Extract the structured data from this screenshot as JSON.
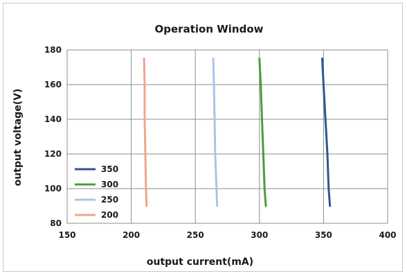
{
  "chart_data": {
    "type": "line",
    "title": "Operation Window",
    "xlabel": "output current(mA)",
    "ylabel": "output voltage(V)",
    "xlim": [
      150,
      400
    ],
    "ylim": [
      80,
      180
    ],
    "x_ticks": [
      150,
      200,
      250,
      300,
      350,
      400
    ],
    "y_ticks": [
      80,
      100,
      120,
      140,
      160,
      180
    ],
    "grid": true,
    "legend_position": "bottom-left",
    "series": [
      {
        "name": "350",
        "color": "#2f5597",
        "points": [
          [
            349,
            175
          ],
          [
            350,
            160
          ],
          [
            351.5,
            140
          ],
          [
            353,
            120
          ],
          [
            354,
            100
          ],
          [
            355,
            90
          ]
        ]
      },
      {
        "name": "300",
        "color": "#4e9a3a",
        "points": [
          [
            300,
            175
          ],
          [
            301,
            160
          ],
          [
            302,
            140
          ],
          [
            303,
            120
          ],
          [
            304,
            100
          ],
          [
            305,
            90
          ]
        ]
      },
      {
        "name": "250",
        "color": "#a9c4e6",
        "points": [
          [
            264,
            175
          ],
          [
            264.5,
            160
          ],
          [
            265,
            140
          ],
          [
            265.5,
            120
          ],
          [
            266.5,
            100
          ],
          [
            267,
            90
          ]
        ]
      },
      {
        "name": "200",
        "color": "#f0a58a",
        "points": [
          [
            210,
            175
          ],
          [
            210.5,
            160
          ],
          [
            210.5,
            140
          ],
          [
            211,
            120
          ],
          [
            211.5,
            100
          ],
          [
            212,
            90
          ]
        ]
      }
    ]
  }
}
